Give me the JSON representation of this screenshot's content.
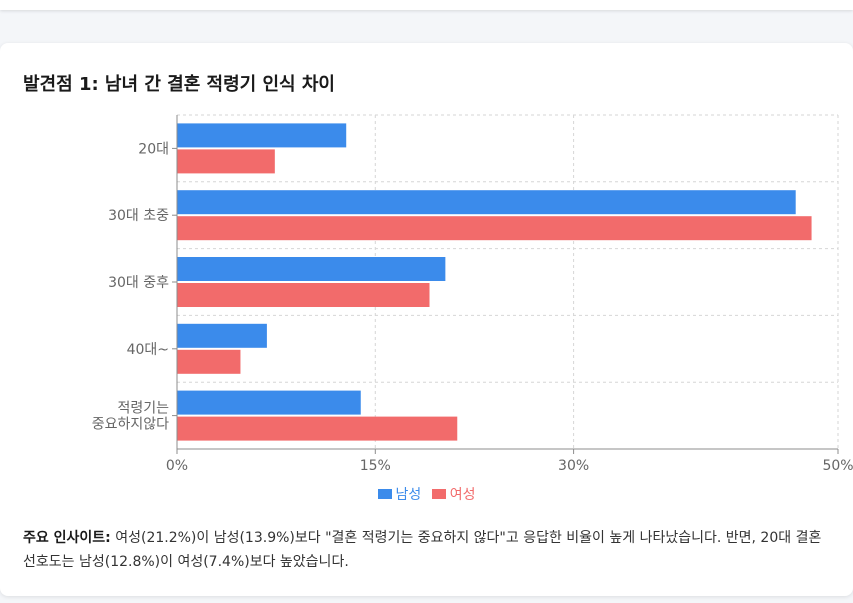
{
  "card": {
    "title": "발견점 1: 남녀 간 결혼 적령기 인식 차이"
  },
  "chart_data": {
    "type": "bar",
    "orientation": "horizontal",
    "categories": [
      "20대",
      "30대 초중",
      "30대 중후",
      "40대~",
      "적령기는 중요하지않다"
    ],
    "category_label_lines": [
      [
        "20대"
      ],
      [
        "30대 초중"
      ],
      [
        "30대 중후"
      ],
      [
        "40대~"
      ],
      [
        "적령기는",
        "중요하지않다"
      ]
    ],
    "series": [
      {
        "name": "남성",
        "color": "#3b8beb",
        "values": [
          12.8,
          46.8,
          20.3,
          6.8,
          13.9
        ]
      },
      {
        "name": "여성",
        "color": "#f26b6b",
        "values": [
          7.4,
          48.0,
          19.1,
          4.8,
          21.2
        ]
      }
    ],
    "xlim": [
      0,
      50
    ],
    "xticks": [
      "0%",
      "15%",
      "30%",
      "50%"
    ],
    "xtick_values": [
      0,
      15,
      30,
      50
    ],
    "grid": true,
    "legend_position": "bottom"
  },
  "insight": {
    "label": "주요 인사이트:",
    "text": " 여성(21.2%)이 남성(13.9%)보다 \"결혼 적령기는 중요하지 않다\"고 응답한 비율이 높게 나타났습니다. 반면, 20대 결혼 선호도는 남성(12.8%)이 여성(7.4%)보다 높았습니다."
  },
  "colors": {
    "male": "#3b8beb",
    "female": "#f26b6b",
    "grid": "#d6d6d6",
    "axis": "#8c8c8c",
    "tick_text": "#666666"
  }
}
